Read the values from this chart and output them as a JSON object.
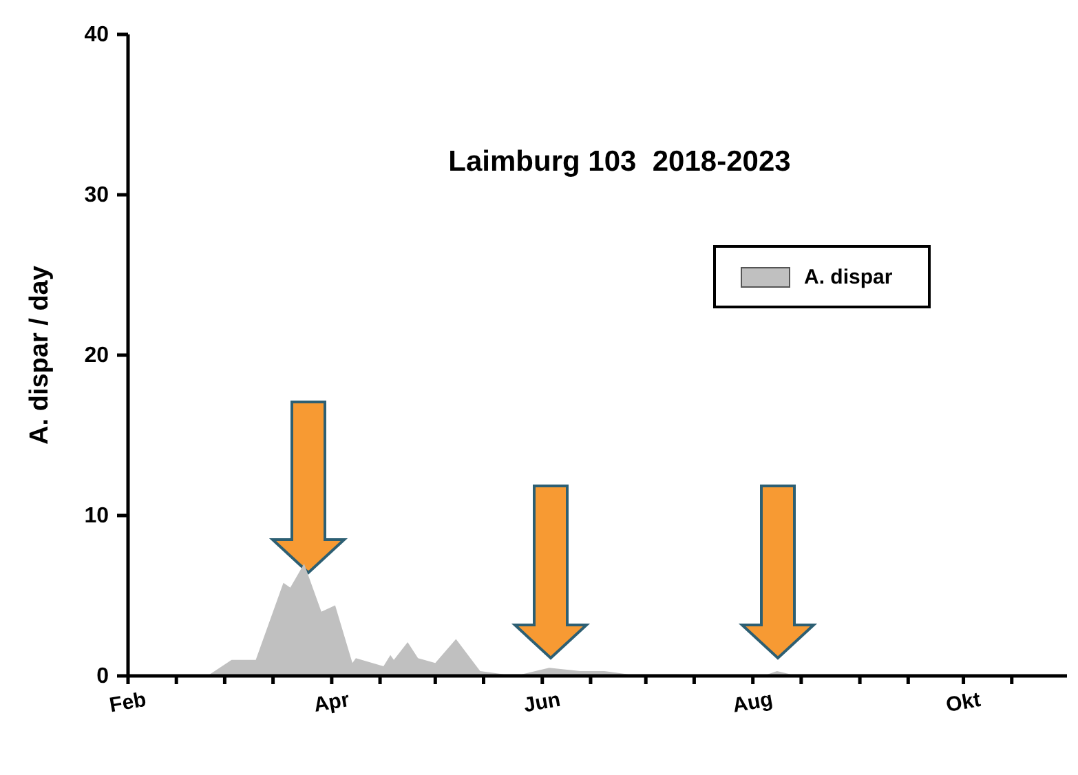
{
  "chart_data": {
    "type": "area",
    "title": "Laimburg 103  2018-2023",
    "ylabel": "A. dispar / day",
    "xlim": [
      "--02-01",
      "--10-31"
    ],
    "xticks": [
      {
        "value": "--02-01",
        "label": "Feb"
      },
      {
        "value": "--02-15",
        "label": null
      },
      {
        "value": "--03-01",
        "label": null
      },
      {
        "value": "--03-15",
        "label": null
      },
      {
        "value": "--04-01",
        "label": "Apr"
      },
      {
        "value": "--04-15",
        "label": null
      },
      {
        "value": "--05-01",
        "label": null
      },
      {
        "value": "--05-15",
        "label": null
      },
      {
        "value": "--06-01",
        "label": "Jun"
      },
      {
        "value": "--06-15",
        "label": null
      },
      {
        "value": "--07-01",
        "label": null
      },
      {
        "value": "--07-15",
        "label": null
      },
      {
        "value": "--08-01",
        "label": "Aug"
      },
      {
        "value": "--08-15",
        "label": null
      },
      {
        "value": "--09-01",
        "label": null
      },
      {
        "value": "--09-15",
        "label": null
      },
      {
        "value": "--10-01",
        "label": "Okt"
      },
      {
        "value": "--10-15",
        "label": null
      }
    ],
    "ylim": [
      0,
      40
    ],
    "yticks": [
      0,
      10,
      20,
      30,
      40
    ],
    "grid": false,
    "legend": "top right",
    "x": [
      "--02-24",
      "--03-03",
      "--03-10",
      "--03-18",
      "--03-20",
      "--03-24",
      "--03-29",
      "--04-02",
      "--04-07",
      "--04-08",
      "--04-16",
      "--04-18",
      "--04-19",
      "--04-23",
      "--04-26",
      "--05-01",
      "--05-07",
      "--05-14",
      "--05-21",
      "--05-26",
      "--06-03",
      "--06-12",
      "--06-19",
      "--06-26",
      "--07-10",
      "--08-04",
      "--08-08",
      "--08-12",
      "--10-01",
      "--10-05"
    ],
    "series": [
      {
        "name": "A. dispar",
        "color": "#c0c0c0",
        "values": [
          0,
          1,
          1,
          5.8,
          5.5,
          7,
          4,
          4.4,
          0.8,
          1.1,
          0.6,
          1.3,
          1,
          2.1,
          1.1,
          0.8,
          2.3,
          0.3,
          0.1,
          0.1,
          0.5,
          0.3,
          0.3,
          0.1,
          0.1,
          0,
          0.3,
          0.1,
          0.1,
          0
        ]
      }
    ]
  }
}
